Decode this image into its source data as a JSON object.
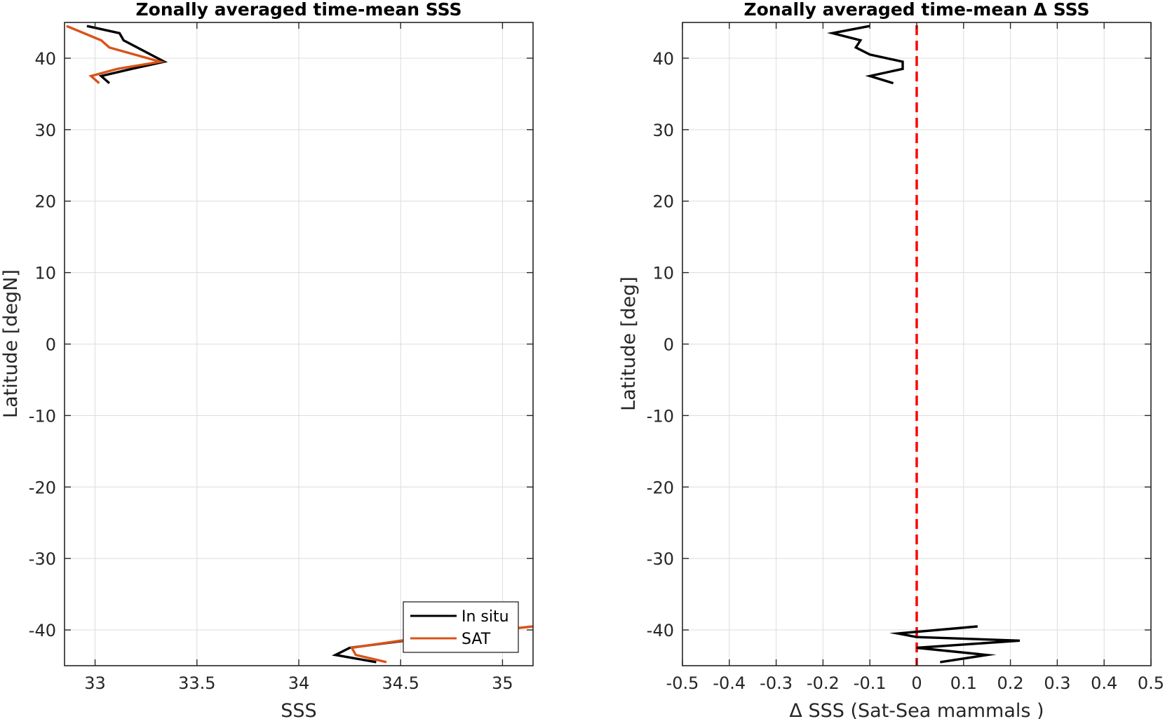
{
  "chart_data": [
    {
      "type": "line",
      "title": "Zonally averaged time-mean SSS",
      "xlabel": "SSS",
      "ylabel": "Latitude [degN]",
      "xlim": [
        32.85,
        35.15
      ],
      "ylim": [
        -45,
        45
      ],
      "xticks": [
        33,
        33.5,
        34,
        34.5,
        35
      ],
      "xtick_labels": [
        "33",
        "33.5",
        "34",
        "34.5",
        "35"
      ],
      "yticks": [
        -40,
        -30,
        -20,
        -10,
        0,
        10,
        20,
        30,
        40
      ],
      "ytick_labels": [
        "-40",
        "-30",
        "-20",
        "-10",
        "0",
        "10",
        "20",
        "30",
        "40"
      ],
      "grid": true,
      "legend_position": "bottom-right",
      "series": [
        {
          "name": "In situ",
          "color": "#000000",
          "segments": [
            {
              "x": [
                32.96,
                33.12,
                33.14,
                33.34,
                33.18,
                33.03,
                33.07
              ],
              "y": [
                44.5,
                43.5,
                42.5,
                39.5,
                38.5,
                37.5,
                36.5
              ]
            },
            {
              "x": [
                34.38,
                34.18,
                34.25,
                34.52,
                34.59
              ],
              "y": [
                -44.5,
                -43.5,
                -42.5,
                -41.5,
                -41.0
              ]
            }
          ]
        },
        {
          "name": "SAT",
          "color": "#D95319",
          "segments": [
            {
              "x": [
                32.86,
                33.03,
                33.07,
                33.32,
                33.11,
                32.98,
                33.02
              ],
              "y": [
                44.5,
                42.5,
                41.5,
                39.5,
                38.5,
                37.5,
                36.5
              ]
            },
            {
              "x": [
                34.43,
                34.28,
                34.26,
                34.5,
                35.15
              ],
              "y": [
                -44.5,
                -43.5,
                -42.5,
                -41.5,
                -39.5
              ]
            }
          ]
        }
      ]
    },
    {
      "type": "line",
      "title": "Zonally averaged time-mean Δ SSS",
      "xlabel": "Δ SSS (Sat-Sea mammals )",
      "ylabel": "Latitude [deg]",
      "xlim": [
        -0.5,
        0.5
      ],
      "ylim": [
        -45,
        45
      ],
      "xticks": [
        -0.5,
        -0.4,
        -0.3,
        -0.2,
        -0.1,
        0,
        0.1,
        0.2,
        0.3,
        0.4,
        0.5
      ],
      "xtick_labels": [
        "-0.5",
        "-0.4",
        "-0.3",
        "-0.2",
        "-0.1",
        "0",
        "0.1",
        "0.2",
        "0.3",
        "0.4",
        "0.5"
      ],
      "yticks": [
        -40,
        -30,
        -20,
        -10,
        0,
        10,
        20,
        30,
        40
      ],
      "ytick_labels": [
        "-40",
        "-30",
        "-20",
        "-10",
        "0",
        "10",
        "20",
        "30",
        "40"
      ],
      "grid": true,
      "reference_line": {
        "x": 0,
        "color": "#FF0000",
        "style": "dashed"
      },
      "series": [
        {
          "color": "#000000",
          "segments": [
            {
              "x": [
                -0.1,
                -0.18,
                -0.12,
                -0.13,
                -0.1,
                -0.03,
                -0.03,
                -0.1,
                -0.05
              ],
              "y": [
                44.5,
                43.5,
                42.5,
                41.5,
                40.5,
                39.5,
                38.5,
                37.5,
                36.5
              ]
            },
            {
              "x": [
                0.05,
                0.15,
                0.0,
                0.22,
                0.0,
                -0.04,
                0.13
              ],
              "y": [
                -44.5,
                -43.5,
                -42.5,
                -41.5,
                -41.0,
                -40.5,
                -39.5
              ]
            }
          ]
        }
      ]
    }
  ]
}
